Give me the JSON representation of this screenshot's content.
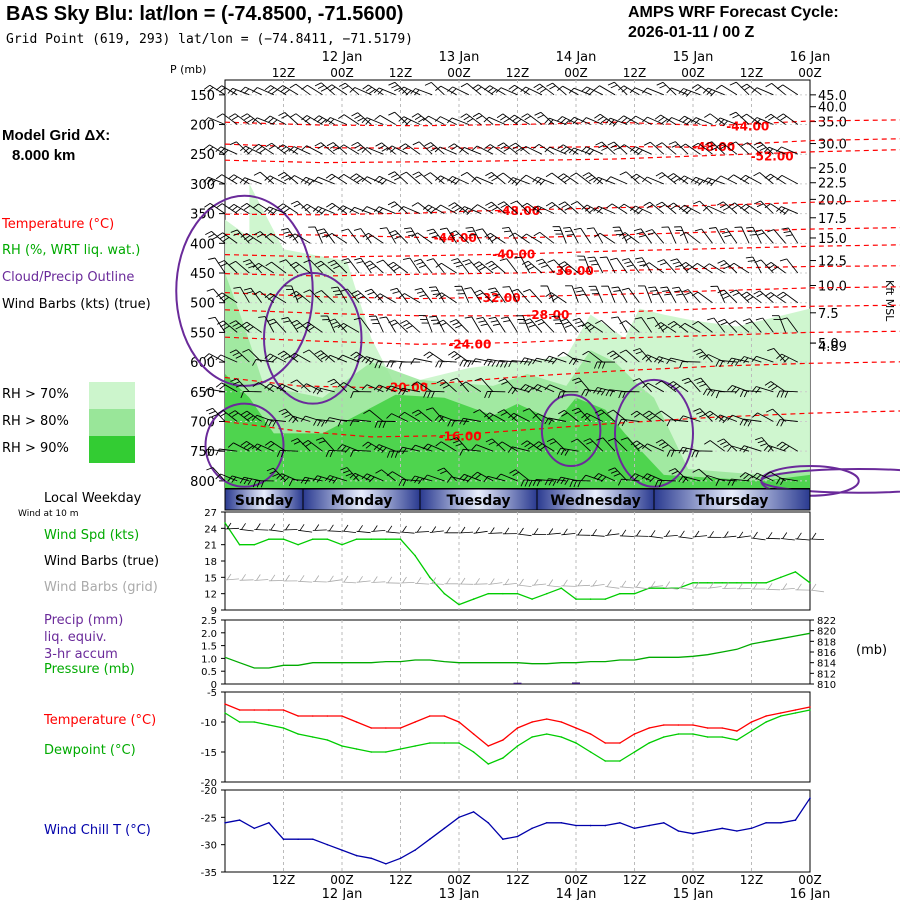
{
  "header": {
    "title": "BAS Sky Blu:  lat/lon = (-74.8500, -71.5600)",
    "grid_point": "Grid Point (619, 293) lat/lon = (−74.8411, −71.5179)",
    "cycle_line1": "AMPS WRF Forecast Cycle:",
    "cycle_line2": "2026-01-11 / 00  Z"
  },
  "legend": {
    "model_grid_line1": "Model Grid ΔX:",
    "model_grid_line2": "8.000 km",
    "temperature": "Temperature (°C)",
    "rh": "RH (%, WRT liq. wat.)",
    "cloud": "Cloud/Precip Outline",
    "wind_barbs": "Wind Barbs (kts) (true)",
    "rh70": "RH > 70%",
    "rh80": "RH > 80%",
    "rh90": "RH > 90%",
    "rh_colors": [
      "#ccf5cc",
      "#99e699",
      "#33cc33"
    ]
  },
  "colors": {
    "temperature": "#ff0000",
    "rh": "#00aa00",
    "cloud": "#6a2a9a",
    "wind_chill": "#0000aa",
    "pressure": "#00aa00",
    "precip": "#3a1a7a"
  },
  "axes": {
    "p_label": "P (mb)",
    "kft_label": "Kft MSL",
    "p_levels": [
      "150",
      "200",
      "250",
      "300",
      "350",
      "400",
      "450",
      "500",
      "550",
      "600",
      "650",
      "700",
      "750",
      "800"
    ],
    "kft_ticks": [
      {
        "p": 150,
        "t": "45.0"
      },
      {
        "p": 170,
        "t": "40.0"
      },
      {
        "p": 195,
        "t": "35.0"
      },
      {
        "p": 232,
        "t": "30.0"
      },
      {
        "p": 273,
        "t": "25.0"
      },
      {
        "p": 298,
        "t": "22.5"
      },
      {
        "p": 326,
        "t": "20.0"
      },
      {
        "p": 357,
        "t": "17.5"
      },
      {
        "p": 391,
        "t": "15.0"
      },
      {
        "p": 429,
        "t": "12.5"
      },
      {
        "p": 471,
        "t": "10.0"
      },
      {
        "p": 517,
        "t": "7.5"
      },
      {
        "p": 568,
        "t": "5.0"
      },
      {
        "p": 568,
        "t": "4.89"
      }
    ],
    "time_top": [
      {
        "i": 1,
        "a": "",
        "b": "12Z"
      },
      {
        "i": 2,
        "a": "12 Jan",
        "b": "00Z"
      },
      {
        "i": 3,
        "a": "",
        "b": "12Z"
      },
      {
        "i": 4,
        "a": "13 Jan",
        "b": "00Z"
      },
      {
        "i": 5,
        "a": "",
        "b": "12Z"
      },
      {
        "i": 6,
        "a": "14 Jan",
        "b": "00Z"
      },
      {
        "i": 7,
        "a": "",
        "b": "12Z"
      },
      {
        "i": 8,
        "a": "15 Jan",
        "b": "00Z"
      },
      {
        "i": 9,
        "a": "",
        "b": "12Z"
      },
      {
        "i": 10,
        "a": "16 Jan",
        "b": "00Z"
      }
    ],
    "time_bottom": [
      {
        "i": 1,
        "a": "12Z",
        "b": ""
      },
      {
        "i": 2,
        "a": "00Z",
        "b": "12 Jan"
      },
      {
        "i": 3,
        "a": "12Z",
        "b": ""
      },
      {
        "i": 4,
        "a": "00Z",
        "b": "13 Jan"
      },
      {
        "i": 5,
        "a": "12Z",
        "b": ""
      },
      {
        "i": 6,
        "a": "00Z",
        "b": "14 Jan"
      },
      {
        "i": 7,
        "a": "12Z",
        "b": ""
      },
      {
        "i": 8,
        "a": "00Z",
        "b": "15 Jan"
      },
      {
        "i": 9,
        "a": "12Z",
        "b": ""
      },
      {
        "i": 10,
        "a": "00Z",
        "b": "16 Jan"
      }
    ],
    "weekday_header": "Local Weekday",
    "weekdays": [
      "Sunday",
      "Monday",
      "Tuesday",
      "Wednesday",
      "Thursday"
    ]
  },
  "panels": {
    "wind_header": "Wind at 10 m",
    "wind_spd": "Wind Spd (kts)",
    "wind_barbs_true": "Wind Barbs (true)",
    "wind_barbs_grid": "Wind Barbs (grid)",
    "wind_ticks": [
      "9",
      "12",
      "15",
      "18",
      "21",
      "24",
      "27"
    ],
    "precip": "Precip (mm)",
    "precip2": "liq. equiv.",
    "precip3": "3-hr accum",
    "pressure": "Pressure (mb)",
    "pressure_unit": "(mb)",
    "precip_ticks": [
      "0",
      "0.5",
      "1.0",
      "1.5",
      "2.0",
      "2.5"
    ],
    "pressure_ticks": [
      "810",
      "812",
      "814",
      "816",
      "818",
      "820",
      "822"
    ],
    "temp": "Temperature (°C)",
    "dewpoint": "Dewpoint (°C)",
    "temp_ticks": [
      "-5",
      "-10",
      "-15",
      "-20"
    ],
    "chill": "Wind Chill T (°C)",
    "chill_ticks": [
      "-20",
      "-25",
      "-30",
      "-35"
    ]
  },
  "chart_data": {
    "type": "line",
    "forecast_hours": [
      0,
      3,
      6,
      9,
      12,
      15,
      18,
      21,
      24,
      27,
      30,
      33,
      36,
      39,
      42,
      45,
      48,
      51,
      54,
      57,
      60,
      63,
      66,
      69,
      72,
      75,
      78,
      81,
      84,
      87,
      90,
      93,
      96,
      99,
      102,
      105,
      108,
      111,
      114,
      117,
      120
    ],
    "isotherms": [
      {
        "label": "-44.00",
        "lx": 102,
        "lp": 203,
        "pts": [
          [
            0,
            196
          ],
          [
            20,
            201
          ],
          [
            40,
            202
          ],
          [
            60,
            200
          ],
          [
            80,
            196
          ],
          [
            100,
            202
          ],
          [
            120,
            194
          ],
          [
            150,
            191
          ]
        ]
      },
      {
        "label": "-48.00",
        "lx": 95,
        "lp": 238,
        "pts": [
          [
            0,
            233
          ],
          [
            20,
            239
          ],
          [
            40,
            240
          ],
          [
            60,
            239
          ],
          [
            80,
            237
          ],
          [
            95,
            238
          ],
          [
            120,
            227
          ],
          [
            150,
            222
          ]
        ]
      },
      {
        "label": "-52.00",
        "lx": 107,
        "lp": 254,
        "pts": [
          [
            0,
            260
          ],
          [
            20,
            264
          ],
          [
            50,
            262
          ],
          [
            80,
            258
          ],
          [
            100,
            252
          ],
          [
            120,
            246
          ],
          [
            150,
            240
          ]
        ]
      },
      {
        "label": "-48.00",
        "lx": 55,
        "lp": 346,
        "pts": [
          [
            0,
            351
          ],
          [
            20,
            352
          ],
          [
            40,
            349
          ],
          [
            50,
            346
          ],
          [
            60,
            344
          ],
          [
            80,
            340
          ],
          [
            100,
            336
          ],
          [
            120,
            331
          ],
          [
            150,
            326
          ]
        ]
      },
      {
        "label": "-44.00",
        "lx": 42,
        "lp": 391,
        "pts": [
          [
            0,
            385
          ],
          [
            20,
            386
          ],
          [
            40,
            390
          ],
          [
            60,
            391
          ],
          [
            80,
            386
          ],
          [
            100,
            381
          ],
          [
            120,
            376
          ],
          [
            150,
            372
          ]
        ]
      },
      {
        "label": "-40.00",
        "lx": 54,
        "lp": 419,
        "pts": [
          [
            0,
            419
          ],
          [
            20,
            423
          ],
          [
            40,
            421
          ],
          [
            60,
            418
          ],
          [
            80,
            413
          ],
          [
            100,
            409
          ],
          [
            120,
            405
          ],
          [
            150,
            401
          ]
        ]
      },
      {
        "label": "-36.00",
        "lx": 66,
        "lp": 447,
        "pts": [
          [
            0,
            451
          ],
          [
            20,
            455
          ],
          [
            40,
            452
          ],
          [
            60,
            450
          ],
          [
            80,
            446
          ],
          [
            100,
            442
          ],
          [
            120,
            439
          ],
          [
            150,
            437
          ]
        ]
      },
      {
        "label": "-32.00",
        "lx": 51,
        "lp": 492,
        "pts": [
          [
            0,
            483
          ],
          [
            20,
            490
          ],
          [
            40,
            493
          ],
          [
            60,
            490
          ],
          [
            80,
            486
          ],
          [
            100,
            480
          ],
          [
            120,
            475
          ],
          [
            150,
            472
          ]
        ]
      },
      {
        "label": "-28.00",
        "lx": 61,
        "lp": 521,
        "pts": [
          [
            0,
            512
          ],
          [
            20,
            518
          ],
          [
            40,
            522
          ],
          [
            60,
            522
          ],
          [
            80,
            516
          ],
          [
            100,
            510
          ],
          [
            120,
            506
          ],
          [
            150,
            503
          ]
        ]
      },
      {
        "label": "-24.00",
        "lx": 45,
        "lp": 570,
        "pts": [
          [
            0,
            558
          ],
          [
            20,
            565
          ],
          [
            40,
            570
          ],
          [
            60,
            567
          ],
          [
            80,
            560
          ],
          [
            100,
            555
          ],
          [
            120,
            550
          ],
          [
            150,
            547
          ]
        ]
      },
      {
        "label": "-20.00",
        "lx": 32,
        "lp": 643,
        "pts": [
          [
            0,
            626
          ],
          [
            15,
            640
          ],
          [
            30,
            643
          ],
          [
            45,
            635
          ],
          [
            60,
            625
          ],
          [
            80,
            615
          ],
          [
            100,
            607
          ],
          [
            120,
            602
          ],
          [
            150,
            598
          ]
        ]
      },
      {
        "label": "-16.00",
        "lx": 43,
        "lp": 725,
        "pts": [
          [
            0,
            700
          ],
          [
            15,
            716
          ],
          [
            30,
            726
          ],
          [
            45,
            724
          ],
          [
            60,
            715
          ],
          [
            80,
            703
          ],
          [
            100,
            693
          ],
          [
            120,
            686
          ],
          [
            150,
            680
          ]
        ]
      }
    ],
    "wind_speed_kts": [
      25,
      21,
      21,
      22,
      22,
      21,
      22,
      22,
      21,
      22,
      22,
      22,
      22,
      19,
      15,
      12,
      10,
      11,
      12,
      12,
      12,
      11,
      12,
      13,
      11,
      11,
      11,
      12,
      12,
      13,
      13,
      13,
      14,
      14,
      14,
      14,
      14,
      14,
      15,
      16,
      14
    ],
    "pressure_mb": [
      815.0,
      814.0,
      813.0,
      813.0,
      813.5,
      813.5,
      814.0,
      814.0,
      814.0,
      814.0,
      814.0,
      814.2,
      814.2,
      814.5,
      814.5,
      814.2,
      814.0,
      814.0,
      814.0,
      814.0,
      814.0,
      813.8,
      813.8,
      814.0,
      814.0,
      814.2,
      814.2,
      814.5,
      814.5,
      815.0,
      815.0,
      815.0,
      815.2,
      815.5,
      816.0,
      816.5,
      817.5,
      818.0,
      818.5,
      819.0,
      819.5
    ],
    "precip_mm": [
      0,
      0,
      0,
      0,
      0,
      0,
      0,
      0,
      0,
      0,
      0,
      0,
      0,
      0,
      0,
      0,
      0,
      0,
      0,
      0,
      0.05,
      0,
      0,
      0,
      0.06,
      0,
      0,
      0,
      0,
      0,
      0,
      0,
      0,
      0,
      0,
      0,
      0,
      0,
      0,
      0,
      0
    ],
    "temperature_c": [
      -7,
      -8,
      -8,
      -8,
      -8,
      -9,
      -9,
      -9,
      -9,
      -10,
      -11,
      -11,
      -11,
      -10,
      -9,
      -9,
      -10,
      -12,
      -14,
      -13,
      -11,
      -10,
      -9.5,
      -10,
      -11,
      -12,
      -13.5,
      -13.5,
      -12,
      -11,
      -10.5,
      -10.5,
      -10.5,
      -11,
      -11,
      -11.5,
      -10,
      -9,
      -8.5,
      -8,
      -7.5
    ],
    "dewpoint_c": [
      -8.5,
      -10,
      -10,
      -10.5,
      -11,
      -12,
      -12.5,
      -13,
      -14,
      -14.5,
      -15,
      -15,
      -14.5,
      -14,
      -13.5,
      -13.5,
      -13.5,
      -15,
      -17,
      -16,
      -14,
      -12.5,
      -12,
      -12.5,
      -13.5,
      -15,
      -16.5,
      -16.5,
      -15,
      -13.5,
      -12.5,
      -12,
      -12,
      -12.5,
      -12.5,
      -13,
      -11.5,
      -10,
      -9,
      -8.5,
      -8
    ],
    "wind_chill_c": [
      -26,
      -25.5,
      -27,
      -26,
      -29,
      -29,
      -29,
      -30,
      -31,
      -32,
      -32.5,
      -33.5,
      -32.5,
      -31,
      -29,
      -27,
      -25,
      -24,
      -26,
      -29,
      -28.5,
      -27,
      -26,
      -26,
      -26.5,
      -26.5,
      -26.5,
      -26,
      -27,
      -26.5,
      -26,
      -27.5,
      -28,
      -27.5,
      -27,
      -27.5,
      -27,
      -26,
      -26,
      -25.5,
      -21.5
    ]
  }
}
